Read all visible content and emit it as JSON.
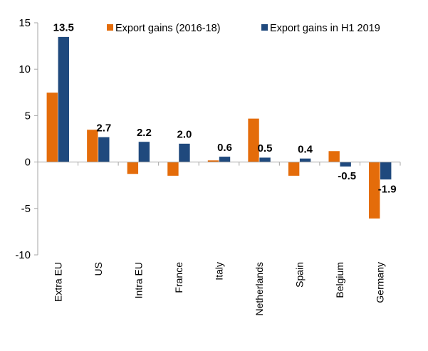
{
  "chart_data": {
    "type": "bar",
    "title": "",
    "xlabel": "",
    "ylabel": "",
    "ylim": [
      -10,
      15
    ],
    "yticks": [
      15,
      10,
      5,
      0,
      -5,
      -10
    ],
    "grid": false,
    "legend_position": "top-right",
    "categories": [
      "Extra EU",
      "US",
      "Intra EU",
      "France",
      "Italy",
      "Netherlands",
      "Spain",
      "Belgium",
      "Germany"
    ],
    "series": [
      {
        "name": "Export gains (2016-18)",
        "color": "#E46C0A",
        "values": [
          7.5,
          3.5,
          -1.3,
          -1.5,
          0.2,
          4.7,
          -1.5,
          1.2,
          -6.1
        ],
        "data_labels": false
      },
      {
        "name": "Export gains in H1 2019",
        "color": "#1F497D",
        "values": [
          13.5,
          2.7,
          2.2,
          2.0,
          0.6,
          0.5,
          0.4,
          -0.5,
          -1.9
        ],
        "data_labels": true,
        "labels": [
          "13.5",
          "2.7",
          "2.2",
          "2.0",
          "0.6",
          "0.5",
          "0.4",
          "-0.5",
          "-1.9"
        ]
      }
    ]
  }
}
